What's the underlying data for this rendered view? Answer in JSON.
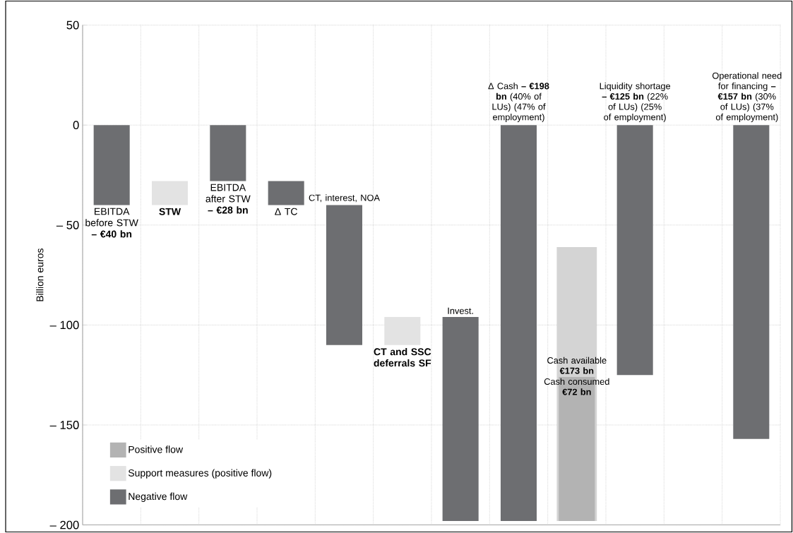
{
  "chart_data": {
    "type": "bar",
    "ylabel": "Billion euros",
    "categories": [
      "EBITDA before STW **– €40 bn**",
      "**STW**",
      "EBITDA after STW **– €28 bn**",
      "Δ TC",
      "CT, interest, NOA",
      "**CT and SSC deferrals SF**",
      "Invest.",
      "Δ Cash **– €198 bn** (40% of LUs) (47% of employment)",
      "Cash consumed **€72 bn**",
      "Liquidity shortage **– €125 bn** (22% of LUs) (25% of employment)",
      null,
      "Operational need for financing **– €157 bn** (30% of LUs) (37% of employment)"
    ],
    "series": [
      {
        "name": "Positive flow",
        "color": "#b3b3b3",
        "values": [
          null,
          null,
          null,
          null,
          null,
          null,
          null,
          null,
          72,
          null,
          null,
          null
        ],
        "base": [
          null,
          null,
          null,
          null,
          null,
          null,
          null,
          null,
          -198,
          null,
          null,
          null
        ]
      },
      {
        "name": "Support measures (positive flow)",
        "color": "#e3e3e3",
        "values": [
          null,
          12,
          null,
          null,
          null,
          14,
          null,
          null,
          null,
          null,
          null,
          null
        ],
        "base": [
          null,
          -40,
          null,
          null,
          null,
          -110,
          null,
          null,
          null,
          null,
          null,
          null
        ]
      },
      {
        "name": "Negative flow",
        "color": "#6d6e71",
        "values": [
          -40,
          null,
          -28,
          -12,
          -70,
          null,
          -102,
          -198,
          null,
          -125,
          null,
          -157
        ],
        "base": [
          0,
          null,
          0,
          -28,
          -40,
          null,
          -96,
          0,
          null,
          0,
          null,
          0
        ]
      },
      {
        "color": "#d4d4d4",
        "values": [
          null,
          null,
          null,
          null,
          null,
          null,
          null,
          null,
          137,
          null,
          null,
          null
        ],
        "base": [
          null,
          null,
          null,
          null,
          null,
          null,
          null,
          null,
          -198,
          null,
          null,
          null
        ]
      }
    ],
    "annotations": [
      "Cash available **€173 bn**"
    ],
    "ylim": [
      -200,
      50
    ],
    "yticks": [
      50,
      0,
      {
        "value": -50,
        "label": "– 50"
      },
      {
        "value": -100,
        "label": "– 100"
      },
      {
        "value": -150,
        "label": "– 150"
      },
      {
        "value": -200,
        "label": "– 200"
      }
    ],
    "grid": true,
    "legend": "bottom left"
  }
}
